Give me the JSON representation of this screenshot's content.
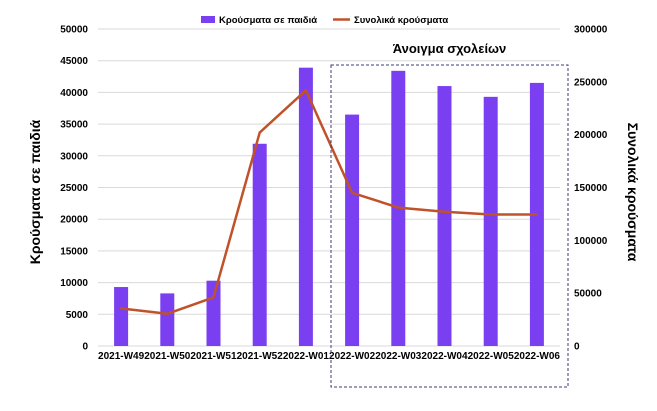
{
  "chart_data": {
    "type": "bar",
    "categories": [
      "2021-W49",
      "2021-W50",
      "2021-W51",
      "2021-W52",
      "2022-W01",
      "2022-W02",
      "2022-W03",
      "2022-W04",
      "2022-W05",
      "2022-W06"
    ],
    "series": [
      {
        "name": "Κρούσματα σε παιδιά",
        "type": "bar",
        "axis": "left",
        "color": "#7b3ff2",
        "values": [
          9300,
          8300,
          10300,
          31900,
          43900,
          36500,
          43400,
          41000,
          39300,
          41500
        ]
      },
      {
        "name": "Συνολικά κρούσματα",
        "type": "line",
        "axis": "right",
        "color": "#c0522b",
        "values": [
          35500,
          30500,
          46000,
          202000,
          242000,
          145000,
          131000,
          127000,
          124500,
          124500
        ]
      }
    ],
    "ylabel": "Κρούσματα σε παιδιά",
    "ylabel_right": "Συνολικά κρούσματα",
    "ylim": [
      0,
      50000
    ],
    "y_ticks": [
      0,
      5000,
      10000,
      15000,
      20000,
      25000,
      30000,
      35000,
      40000,
      45000,
      50000
    ],
    "ylim_right": [
      0,
      300000
    ],
    "y_ticks_right": [
      0,
      50000,
      100000,
      150000,
      200000,
      250000,
      300000
    ],
    "grid": true,
    "legend_position": "top-center",
    "annotation": {
      "text": "Άνοιγμα σχολείων",
      "from_category": "2022-W02",
      "to_category": "2022-W06",
      "border_color": "#3b3b7a"
    }
  }
}
